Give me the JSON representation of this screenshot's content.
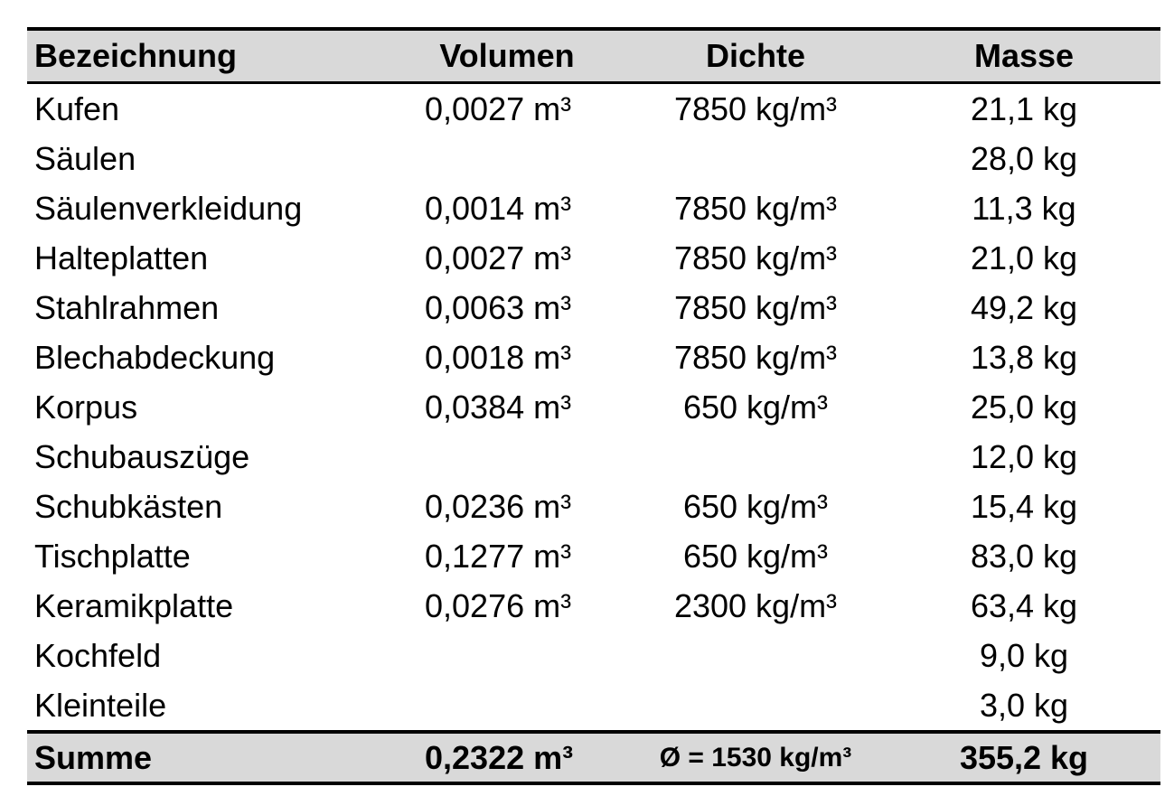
{
  "table": {
    "headers": [
      "Bezeichnung",
      "Volumen",
      "Dichte",
      "Masse"
    ],
    "rows": [
      {
        "name": "Kufen",
        "volume": "0,0027 m³",
        "density": "7850 kg/m³",
        "mass": "21,1 kg"
      },
      {
        "name": "Säulen",
        "volume": "",
        "density": "",
        "mass": "28,0 kg"
      },
      {
        "name": "Säulenverkleidung",
        "volume": "0,0014 m³",
        "density": "7850 kg/m³",
        "mass": "11,3 kg"
      },
      {
        "name": "Halteplatten",
        "volume": "0,0027 m³",
        "density": "7850 kg/m³",
        "mass": "21,0 kg"
      },
      {
        "name": "Stahlrahmen",
        "volume": "0,0063 m³",
        "density": "7850 kg/m³",
        "mass": "49,2 kg"
      },
      {
        "name": "Blechabdeckung",
        "volume": "0,0018 m³",
        "density": "7850 kg/m³",
        "mass": "13,8 kg"
      },
      {
        "name": "Korpus",
        "volume": "0,0384 m³",
        "density": "650 kg/m³",
        "mass": "25,0 kg"
      },
      {
        "name": "Schubauszüge",
        "volume": "",
        "density": "",
        "mass": "12,0 kg"
      },
      {
        "name": "Schubkästen",
        "volume": "0,0236 m³",
        "density": "650 kg/m³",
        "mass": "15,4 kg"
      },
      {
        "name": "Tischplatte",
        "volume": "0,1277 m³",
        "density": "650 kg/m³",
        "mass": "83,0 kg"
      },
      {
        "name": "Keramikplatte",
        "volume": "0,0276 m³",
        "density": "2300 kg/m³",
        "mass": "63,4 kg"
      },
      {
        "name": "Kochfeld",
        "volume": "",
        "density": "",
        "mass": "9,0 kg"
      },
      {
        "name": "Kleinteile",
        "volume": "",
        "density": "",
        "mass": "3,0 kg"
      }
    ],
    "summary": {
      "name": "Summe",
      "volume": "0,2322 m³",
      "density": "Ø = 1530 kg/m³",
      "mass": "355,2 kg"
    },
    "colors": {
      "header_bg": "#d9d9d9",
      "summary_bg": "#d9d9d9",
      "rule": "#000000"
    }
  }
}
